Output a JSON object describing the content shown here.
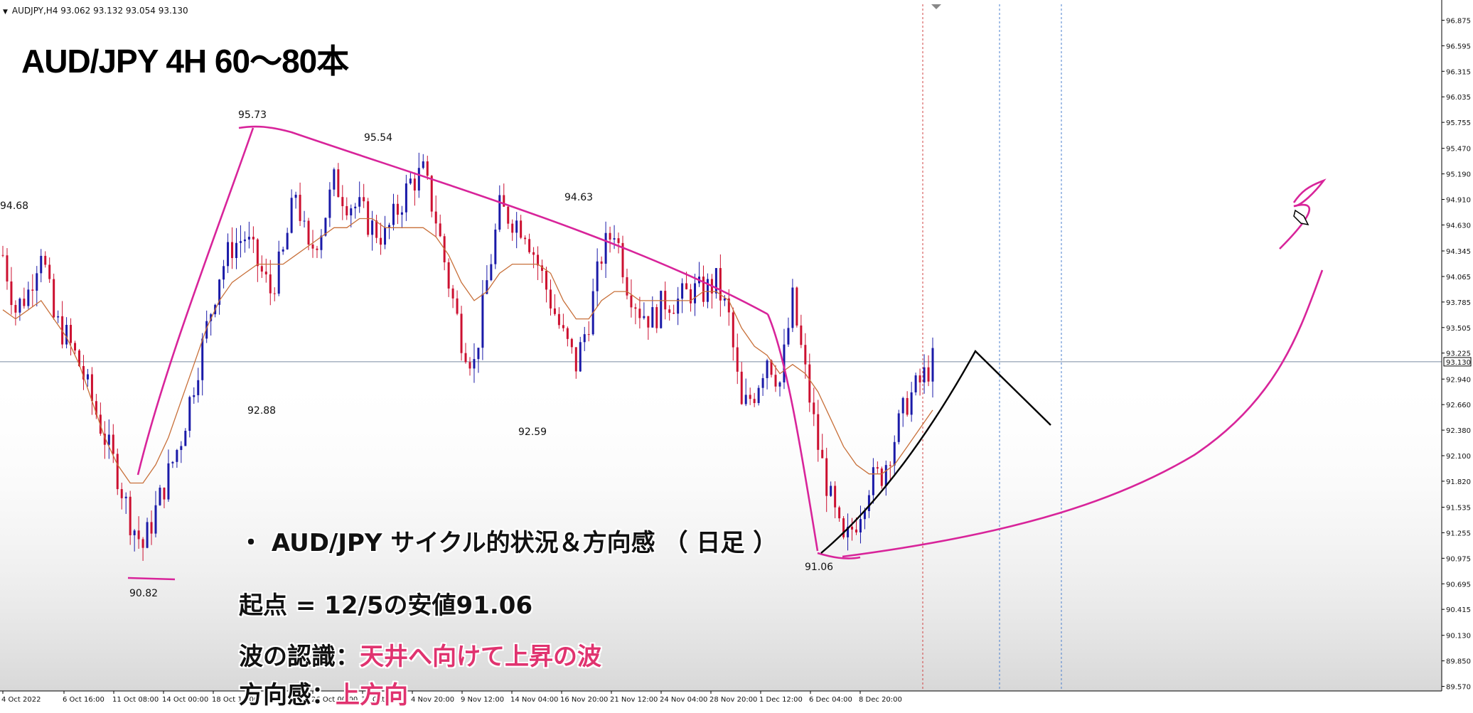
{
  "header": {
    "symbol_line": "AUDJPY,H4  93.062 93.132 93.054 93.130"
  },
  "title": "AUD/JPY 4H 60～80本",
  "overlay": {
    "bullet": "・ AUD/JPY サイクル的状況＆方向感 （ 日足 ）",
    "line1": "起点 = 12/5の安値91.06",
    "line2_label": "波の認識：",
    "line2_value": "天井へ向けて上昇の波",
    "line3_label": "方向感：",
    "line3_value": "上方向"
  },
  "colors": {
    "bull_candle": "#1a1aa8",
    "bear_candle": "#cc1030",
    "ma_line": "#c8703a",
    "annotation": "#d8249a",
    "projection": "#000000",
    "vline_red": "#d04040",
    "vline_blue": "#4a7fcf",
    "current_price_line": "#7a8aa0"
  },
  "chart_data": {
    "type": "candlestick",
    "symbol": "AUDJPY",
    "timeframe": "H4",
    "ohlc_header": {
      "open": 93.062,
      "high": 93.132,
      "low": 93.054,
      "close": 93.13
    },
    "current_price": "93.130",
    "y_axis": {
      "ticks": [
        "96.875",
        "96.595",
        "96.315",
        "96.035",
        "95.755",
        "95.470",
        "95.190",
        "94.910",
        "94.630",
        "94.345",
        "94.065",
        "93.785",
        "93.505",
        "93.225",
        "92.940",
        "92.660",
        "92.380",
        "92.100",
        "91.820",
        "91.535",
        "91.255",
        "90.975",
        "90.695",
        "90.415",
        "90.130",
        "89.850",
        "89.570"
      ],
      "ylim": [
        89.52,
        97.05
      ]
    },
    "x_axis": {
      "ticks": [
        "4 Oct 2022",
        "6 Oct 16:00",
        "11 Oct 08:00",
        "14 Oct 00:00",
        "18 Oct 16:00",
        "21 Oct 08:00",
        "26 Oct 00:00",
        "31 Oct 16:00",
        "4 Nov 20:00",
        "9 Nov 12:00",
        "14 Nov 04:00",
        "16 Nov 20:00",
        "21 Nov 12:00",
        "24 Nov 04:00",
        "28 Nov 20:00",
        "1 Dec 12:00",
        "6 Dec 04:00",
        "8 Dec 20:00"
      ]
    },
    "swing_labels": [
      {
        "label": "94.68",
        "price": 94.68
      },
      {
        "label": "95.73",
        "price": 95.73
      },
      {
        "label": "95.54",
        "price": 95.54
      },
      {
        "label": "94.63",
        "price": 94.63
      },
      {
        "label": "92.88",
        "price": 92.88
      },
      {
        "label": "92.59",
        "price": 92.59
      },
      {
        "label": "90.82",
        "price": 90.82
      },
      {
        "label": "91.06",
        "price": 91.06
      }
    ],
    "approx_price_path": [
      94.3,
      93.7,
      93.9,
      94.4,
      93.6,
      93.4,
      93.1,
      92.7,
      92.3,
      91.9,
      91.4,
      91.1,
      91.5,
      91.9,
      92.3,
      92.9,
      93.5,
      94.1,
      94.4,
      94.5,
      94.2,
      93.9,
      94.3,
      95.0,
      94.3,
      94.6,
      95.1,
      94.9,
      94.8,
      94.6,
      94.5,
      94.8,
      95.1,
      95.2,
      94.7,
      94.0,
      93.4,
      93.1,
      94.0,
      94.8,
      94.7,
      94.6,
      94.2,
      93.8,
      93.4,
      93.1,
      93.6,
      94.3,
      94.6,
      94.0,
      93.7,
      93.6,
      93.8,
      93.8,
      93.9,
      93.9,
      94.0,
      93.6,
      92.6,
      92.8,
      93.2,
      92.9,
      93.8,
      93.0,
      92.2,
      91.6,
      91.1,
      91.4,
      91.8,
      91.9,
      92.3,
      92.7,
      92.9,
      93.13
    ],
    "ma_path": [
      93.7,
      93.6,
      93.7,
      93.8,
      93.6,
      93.4,
      93.1,
      92.7,
      92.3,
      92.0,
      91.8,
      91.8,
      92.0,
      92.3,
      92.7,
      93.1,
      93.5,
      93.8,
      94.0,
      94.1,
      94.2,
      94.2,
      94.2,
      94.3,
      94.4,
      94.5,
      94.6,
      94.6,
      94.7,
      94.7,
      94.6,
      94.6,
      94.6,
      94.6,
      94.5,
      94.3,
      94.0,
      93.8,
      93.9,
      94.1,
      94.2,
      94.2,
      94.2,
      94.1,
      93.8,
      93.6,
      93.6,
      93.8,
      93.9,
      93.9,
      93.8,
      93.8,
      93.8,
      93.8,
      93.8,
      93.9,
      93.9,
      93.8,
      93.5,
      93.3,
      93.2,
      93.0,
      93.1,
      93.0,
      92.8,
      92.5,
      92.2,
      92.0,
      91.9,
      91.9,
      92.0,
      92.2,
      92.4,
      92.6
    ]
  }
}
